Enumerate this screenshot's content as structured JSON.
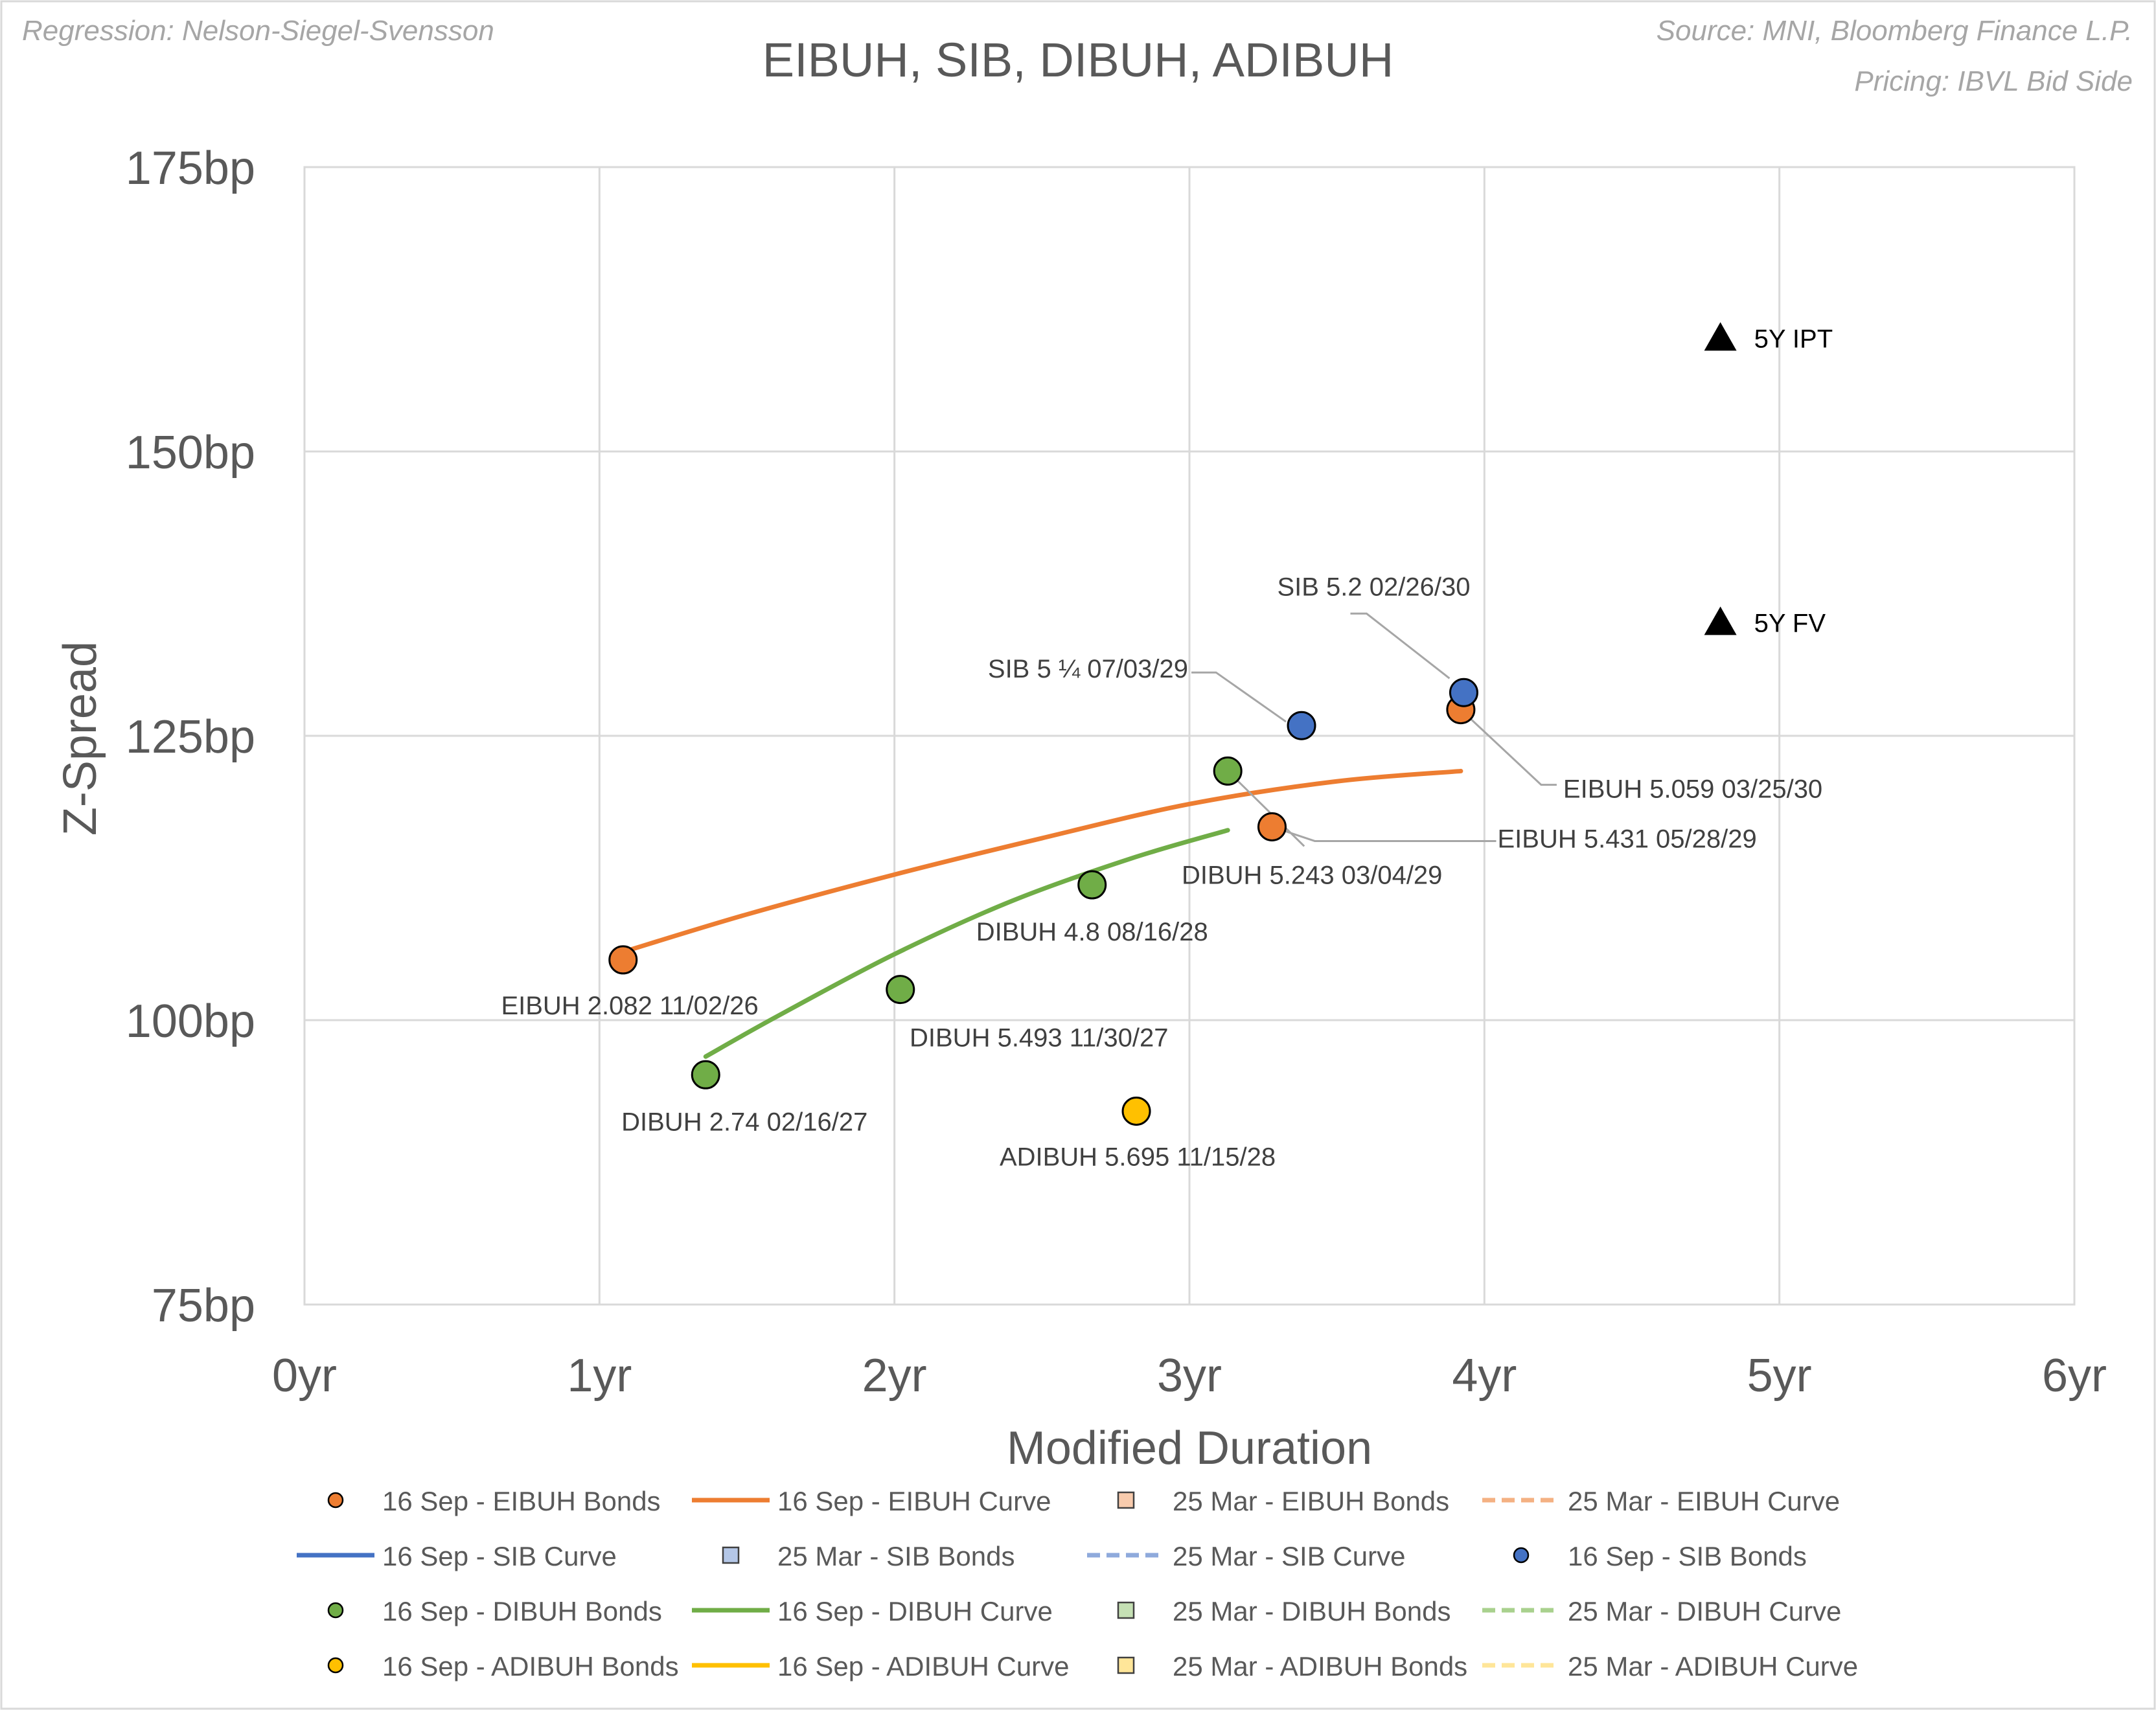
{
  "chart_data": {
    "type": "scatter",
    "title": "EIBUH, SIB, DIBUH, ADIBUH",
    "note_left": "Regression: Nelson-Siegel-Svensson",
    "note_right_1": "Source: MNI, Bloomberg Finance L.P.",
    "note_right_2": "Pricing: IBVL Bid Side",
    "xlabel": "Modified Duration",
    "ylabel": "Z-Spread",
    "xlim": [
      0,
      6
    ],
    "ylim": [
      75,
      175
    ],
    "x_ticks": [
      0,
      1,
      2,
      3,
      4,
      5,
      6
    ],
    "x_tick_labels": [
      "0yr",
      "1yr",
      "2yr",
      "3yr",
      "4yr",
      "5yr",
      "6yr"
    ],
    "y_ticks": [
      75,
      100,
      125,
      150,
      175
    ],
    "y_tick_labels": [
      "75bp",
      "100bp",
      "125bp",
      "150bp",
      "175bp"
    ],
    "grid": true,
    "colors": {
      "eibuh": "#ED7D31",
      "sib": "#4472C4",
      "dibuh": "#70AD47",
      "adibuh": "#FFC000",
      "grid": "#D9D9D9",
      "text": "#595959",
      "label_text": "#404040",
      "leader": "#A6A6A6",
      "marker": "#000000"
    },
    "bonds": [
      {
        "name": "EIBUH 2.082 11/02/26",
        "series": "eibuh",
        "x": 1.08,
        "y": 105.3
      },
      {
        "name": "EIBUH 5.431 05/28/29",
        "series": "eibuh",
        "x": 3.28,
        "y": 117.0
      },
      {
        "name": "EIBUH 5.059 03/25/30",
        "series": "eibuh",
        "x": 3.92,
        "y": 127.3
      },
      {
        "name": "SIB 5 ¼ 07/03/29",
        "series": "sib",
        "x": 3.38,
        "y": 125.9
      },
      {
        "name": "SIB 5.2 02/26/30",
        "series": "sib",
        "x": 3.93,
        "y": 128.8
      },
      {
        "name": "DIBUH 2.74 02/16/27",
        "series": "dibuh",
        "x": 1.36,
        "y": 95.2
      },
      {
        "name": "DIBUH 5.493 11/30/27",
        "series": "dibuh",
        "x": 2.02,
        "y": 102.7
      },
      {
        "name": "DIBUH 4.8 08/16/28",
        "series": "dibuh",
        "x": 2.67,
        "y": 111.9
      },
      {
        "name": "DIBUH 5.243 03/04/29",
        "series": "dibuh",
        "x": 3.13,
        "y": 121.9
      },
      {
        "name": "ADIBUH 5.695 11/15/28",
        "series": "adibuh",
        "x": 2.82,
        "y": 92.0
      }
    ],
    "curves": [
      {
        "name": "16 Sep - EIBUH Curve",
        "series": "eibuh",
        "x": [
          1.08,
          1.5,
          2.0,
          2.5,
          3.0,
          3.5,
          3.92
        ],
        "y": [
          106.0,
          109.3,
          112.8,
          116.0,
          119.0,
          121.0,
          121.9
        ]
      },
      {
        "name": "16 Sep - DIBUH Curve",
        "series": "dibuh",
        "x": [
          1.36,
          1.6,
          2.0,
          2.4,
          2.8,
          3.13
        ],
        "y": [
          96.8,
          100.3,
          105.8,
          110.5,
          114.2,
          116.7
        ]
      }
    ],
    "markers": [
      {
        "name": "5Y IPT",
        "x": 4.8,
        "y": 160
      },
      {
        "name": "5Y FV",
        "x": 4.8,
        "y": 135
      }
    ],
    "legend": {
      "placement": "bottom",
      "items": [
        {
          "label": "16 Sep - EIBUH Bonds",
          "kind": "circle",
          "color": "#ED7D31"
        },
        {
          "label": "16 Sep - EIBUH Curve",
          "kind": "line",
          "color": "#ED7D31"
        },
        {
          "label": "25 Mar - EIBUH Bonds",
          "kind": "square",
          "color": "#F8CBAD"
        },
        {
          "label": "25 Mar - EIBUH Curve",
          "kind": "dash",
          "color": "#F4B183"
        },
        {
          "label": "16 Sep - SIB Curve",
          "kind": "line",
          "color": "#4472C4"
        },
        {
          "label": "25 Mar - SIB Bonds",
          "kind": "square",
          "color": "#B4C7E7"
        },
        {
          "label": "25 Mar - SIB Curve",
          "kind": "dash",
          "color": "#8FAADC"
        },
        {
          "label": "16 Sep - SIB Bonds",
          "kind": "circle",
          "color": "#4472C4"
        },
        {
          "label": "16 Sep - DIBUH Bonds",
          "kind": "circle",
          "color": "#70AD47"
        },
        {
          "label": "16 Sep - DIBUH Curve",
          "kind": "line",
          "color": "#70AD47"
        },
        {
          "label": "25 Mar - DIBUH Bonds",
          "kind": "square",
          "color": "#C5E0B4"
        },
        {
          "label": "25 Mar - DIBUH Curve",
          "kind": "dash",
          "color": "#A9D18E"
        },
        {
          "label": "16 Sep - ADIBUH Bonds",
          "kind": "circle",
          "color": "#FFC000"
        },
        {
          "label": "16 Sep - ADIBUH Curve",
          "kind": "line",
          "color": "#FFC000"
        },
        {
          "label": "25 Mar - ADIBUH Bonds",
          "kind": "square",
          "color": "#FFE699"
        },
        {
          "label": "25 Mar - ADIBUH Curve",
          "kind": "dash",
          "color": "#FFE699"
        }
      ]
    }
  }
}
